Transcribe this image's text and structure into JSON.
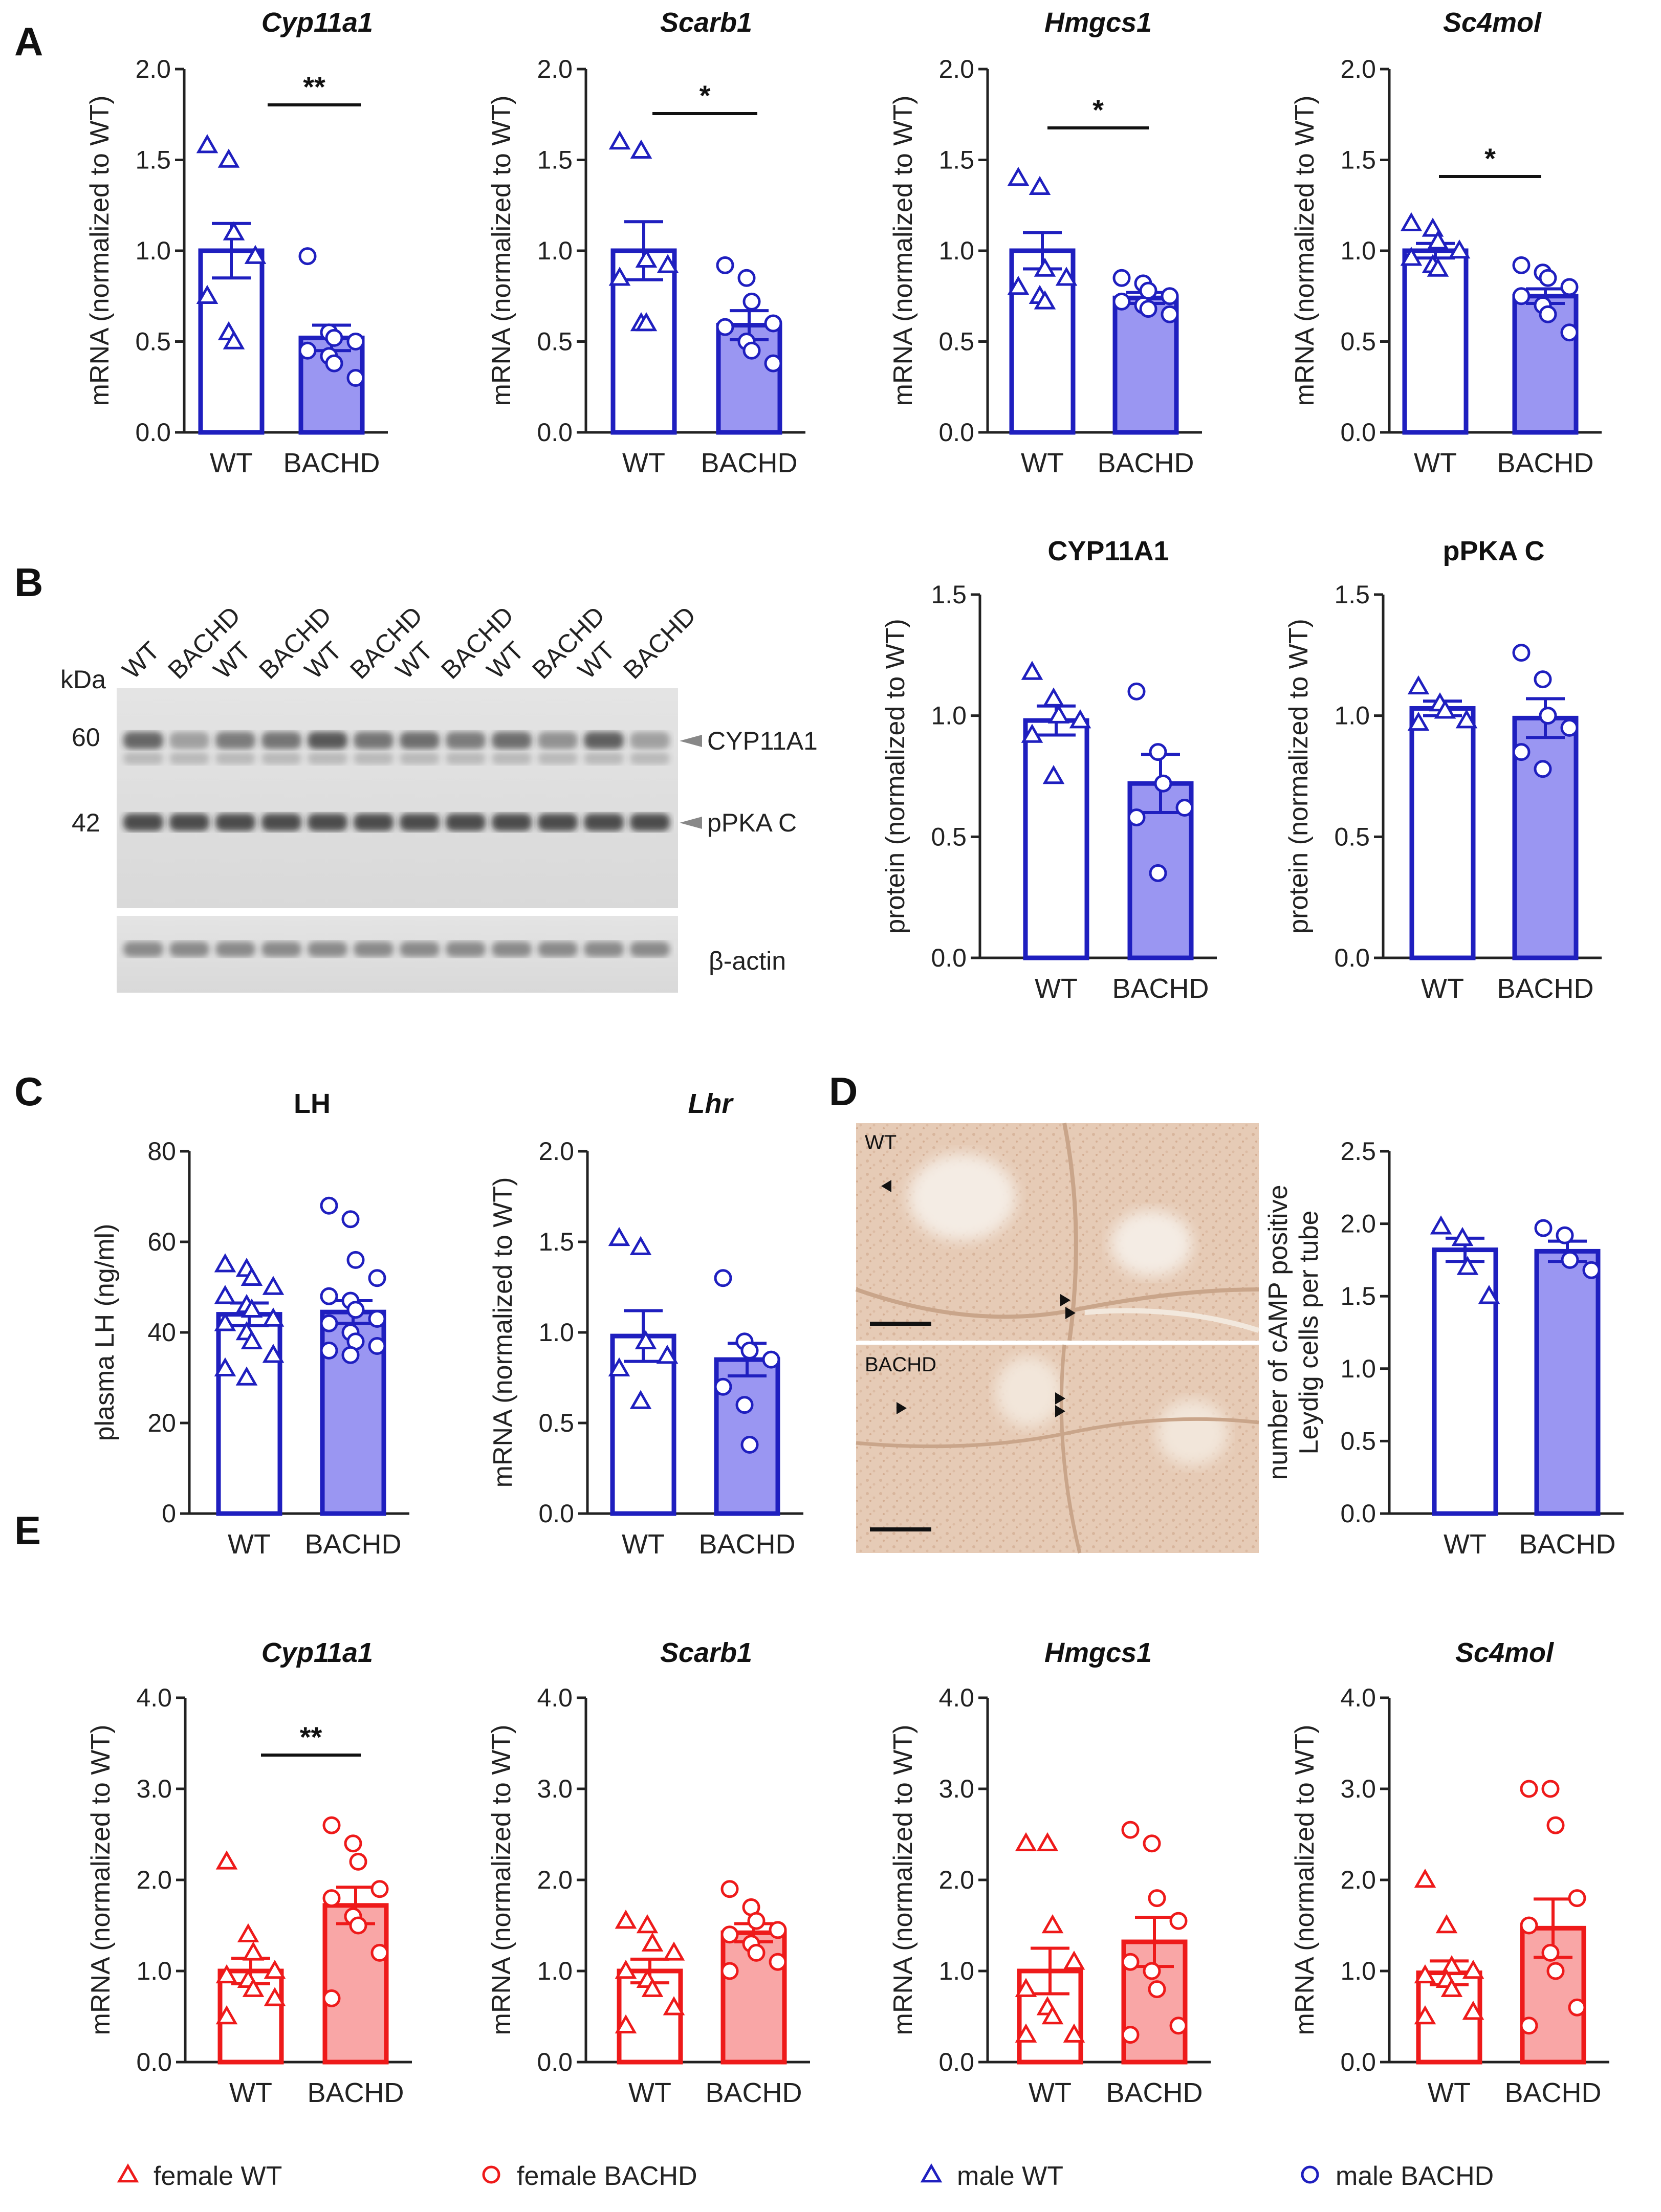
{
  "colors": {
    "blue": "#1f1fbf",
    "blue_fill": "#9a96f2",
    "red": "#ee1a1a",
    "red_fill": "#f9a6a6",
    "axis": "#222222",
    "open_fill": "#ffffff"
  },
  "panels": {
    "A": {
      "letter": "A"
    },
    "B": {
      "letter": "B"
    },
    "C": {
      "letter": "C"
    },
    "D": {
      "letter": "D"
    },
    "E": {
      "letter": "E"
    }
  },
  "blot": {
    "lanes": [
      "WT",
      "BACHD",
      "WT",
      "BACHD",
      "WT",
      "BACHD",
      "WT",
      "BACHD",
      "WT",
      "BACHD",
      "WT",
      "BACHD"
    ],
    "kda_label": "kDa",
    "markers": [
      "60",
      "42"
    ],
    "band_labels": [
      "CYP11A1",
      "pPKA C"
    ],
    "loading_label": "β-actin"
  },
  "micrograph": {
    "top_label": "WT",
    "bottom_label": "BACHD"
  },
  "legend": [
    {
      "label": "female WT",
      "shape": "triangle",
      "color": "red"
    },
    {
      "label": "female BACHD",
      "shape": "circle",
      "color": "red"
    },
    {
      "label": "male WT",
      "shape": "triangle",
      "color": "blue"
    },
    {
      "label": "male BACHD",
      "shape": "circle",
      "color": "blue"
    }
  ],
  "chart_data": [
    {
      "id": "A1",
      "type": "bar",
      "title": "Cyp11a1",
      "italic": true,
      "ylabel": "mRNA (normalized to WT)",
      "ylim": [
        0,
        2.0
      ],
      "yticks": [
        "0.0",
        "0.5",
        "1.0",
        "1.5",
        "2.0"
      ],
      "categories": [
        "WT",
        "BACHD"
      ],
      "values": [
        1.0,
        0.52
      ],
      "errors": [
        0.15,
        0.07
      ],
      "color": "blue",
      "points": [
        [
          1.58,
          1.5,
          1.1,
          0.97,
          0.75,
          0.55,
          0.5
        ],
        [
          0.97,
          0.55,
          0.52,
          0.5,
          0.45,
          0.42,
          0.38,
          0.3
        ]
      ],
      "significance": "**"
    },
    {
      "id": "A2",
      "type": "bar",
      "title": "Scarb1",
      "italic": true,
      "ylabel": "mRNA (normalized to WT)",
      "ylim": [
        0,
        2.0
      ],
      "yticks": [
        "0.0",
        "0.5",
        "1.0",
        "1.5",
        "2.0"
      ],
      "categories": [
        "WT",
        "BACHD"
      ],
      "values": [
        1.0,
        0.59
      ],
      "errors": [
        0.16,
        0.08
      ],
      "color": "blue",
      "points": [
        [
          1.6,
          1.55,
          0.95,
          0.92,
          0.85,
          0.6,
          0.6
        ],
        [
          0.92,
          0.85,
          0.72,
          0.6,
          0.58,
          0.5,
          0.45,
          0.38
        ]
      ],
      "significance": "*"
    },
    {
      "id": "A3",
      "type": "bar",
      "title": "Hmgcs1",
      "italic": true,
      "ylabel": "mRNA (normalized to WT)",
      "ylim": [
        0,
        2.0
      ],
      "yticks": [
        "0.0",
        "0.5",
        "1.0",
        "1.5",
        "2.0"
      ],
      "categories": [
        "WT",
        "BACHD"
      ],
      "values": [
        1.0,
        0.74
      ],
      "errors": [
        0.1,
        0.03
      ],
      "color": "blue",
      "points": [
        [
          1.4,
          1.35,
          0.9,
          0.85,
          0.8,
          0.75,
          0.72
        ],
        [
          0.85,
          0.82,
          0.78,
          0.75,
          0.72,
          0.7,
          0.68,
          0.65
        ]
      ],
      "significance": "*"
    },
    {
      "id": "A4",
      "type": "bar",
      "title": "Sc4mol",
      "italic": true,
      "ylabel": "mRNA (normalized to WT)",
      "ylim": [
        0,
        2.0
      ],
      "yticks": [
        "0.0",
        "0.5",
        "1.0",
        "1.5",
        "2.0"
      ],
      "categories": [
        "WT",
        "BACHD"
      ],
      "values": [
        1.0,
        0.75
      ],
      "errors": [
        0.04,
        0.04
      ],
      "color": "blue",
      "points": [
        [
          1.15,
          1.12,
          1.05,
          1.0,
          0.96,
          0.92,
          0.9
        ],
        [
          0.92,
          0.88,
          0.85,
          0.8,
          0.75,
          0.7,
          0.65,
          0.55
        ]
      ],
      "significance": "*"
    },
    {
      "id": "B1",
      "type": "bar",
      "title": "CYP11A1",
      "italic": false,
      "ylabel": "protein (normalized to WT)",
      "ylim": [
        0,
        1.5
      ],
      "yticks": [
        "0.0",
        "0.5",
        "1.0",
        "1.5"
      ],
      "categories": [
        "WT",
        "BACHD"
      ],
      "values": [
        0.98,
        0.72
      ],
      "errors": [
        0.06,
        0.12
      ],
      "color": "blue",
      "points": [
        [
          1.18,
          1.07,
          1.0,
          0.98,
          0.92,
          0.75
        ],
        [
          1.1,
          0.85,
          0.72,
          0.62,
          0.58,
          0.35
        ]
      ],
      "significance": ""
    },
    {
      "id": "B2",
      "type": "bar",
      "title": "pPKA C",
      "italic": false,
      "ylabel": "protein (normalized to WT)",
      "ylim": [
        0,
        1.5
      ],
      "yticks": [
        "0.0",
        "0.5",
        "1.0",
        "1.5"
      ],
      "categories": [
        "WT",
        "BACHD"
      ],
      "values": [
        1.03,
        0.99
      ],
      "errors": [
        0.03,
        0.08
      ],
      "color": "blue",
      "points": [
        [
          1.12,
          1.05,
          1.02,
          0.98,
          0.97
        ],
        [
          1.26,
          1.15,
          1.0,
          0.95,
          0.85,
          0.78
        ]
      ],
      "significance": ""
    },
    {
      "id": "C1",
      "type": "bar",
      "title": "LH",
      "italic": false,
      "ylabel": "plasma LH (ng/ml)",
      "ylim": [
        0,
        80
      ],
      "yticks": [
        "0",
        "20",
        "40",
        "60",
        "80"
      ],
      "categories": [
        "WT",
        "BACHD"
      ],
      "values": [
        44,
        44.5
      ],
      "errors": [
        2.5,
        2.5
      ],
      "color": "blue",
      "points": [
        [
          55,
          54,
          52,
          50,
          48,
          46,
          45,
          43,
          42,
          40,
          38,
          35,
          32,
          30
        ],
        [
          68,
          65,
          56,
          52,
          48,
          47,
          45,
          43,
          42,
          40,
          38,
          37,
          36,
          35
        ]
      ],
      "significance": ""
    },
    {
      "id": "C2",
      "type": "bar",
      "title": "Lhr",
      "italic": true,
      "ylabel": "mRNA (normalized to WT)",
      "ylim": [
        0,
        2.0
      ],
      "yticks": [
        "0.0",
        "0.5",
        "1.0",
        "1.5",
        "2.0"
      ],
      "categories": [
        "WT",
        "BACHD"
      ],
      "values": [
        0.98,
        0.85
      ],
      "errors": [
        0.14,
        0.09
      ],
      "color": "blue",
      "points": [
        [
          1.52,
          1.47,
          0.95,
          0.87,
          0.8,
          0.62
        ],
        [
          1.3,
          0.95,
          0.9,
          0.85,
          0.7,
          0.6,
          0.38
        ]
      ],
      "significance": ""
    },
    {
      "id": "D1",
      "type": "bar",
      "title": "",
      "italic": false,
      "ylabel": "number of cAMP positive|Leydig cells per tube",
      "ylim": [
        0,
        2.5
      ],
      "yticks": [
        "0.0",
        "0.5",
        "1.0",
        "1.5",
        "2.0",
        "2.5"
      ],
      "categories": [
        "WT",
        "BACHD"
      ],
      "values": [
        1.82,
        1.81
      ],
      "errors": [
        0.08,
        0.07
      ],
      "color": "blue",
      "points": [
        [
          1.98,
          1.9,
          1.7,
          1.5
        ],
        [
          1.97,
          1.92,
          1.75,
          1.68
        ]
      ],
      "significance": ""
    },
    {
      "id": "E1",
      "type": "bar",
      "title": "Cyp11a1",
      "italic": true,
      "ylabel": "mRNA (normalized to WT)",
      "ylim": [
        0,
        4.0
      ],
      "yticks": [
        "0.0",
        "1.0",
        "2.0",
        "3.0",
        "4.0"
      ],
      "categories": [
        "WT",
        "BACHD"
      ],
      "values": [
        1.0,
        1.72
      ],
      "errors": [
        0.14,
        0.2
      ],
      "color": "red",
      "points": [
        [
          2.2,
          1.4,
          1.2,
          1.0,
          0.95,
          0.9,
          0.8,
          0.7,
          0.5
        ],
        [
          2.6,
          2.4,
          2.2,
          1.9,
          1.8,
          1.6,
          1.5,
          1.2,
          0.7
        ]
      ],
      "significance": "**"
    },
    {
      "id": "E2",
      "type": "bar",
      "title": "Scarb1",
      "italic": true,
      "ylabel": "mRNA (normalized to WT)",
      "ylim": [
        0,
        4.0
      ],
      "yticks": [
        "0.0",
        "1.0",
        "2.0",
        "3.0",
        "4.0"
      ],
      "categories": [
        "WT",
        "BACHD"
      ],
      "values": [
        1.0,
        1.42
      ],
      "errors": [
        0.13,
        0.1
      ],
      "color": "red",
      "points": [
        [
          1.55,
          1.5,
          1.3,
          1.2,
          1.0,
          0.9,
          0.8,
          0.6,
          0.4
        ],
        [
          1.9,
          1.7,
          1.55,
          1.45,
          1.4,
          1.3,
          1.2,
          1.1,
          1.0
        ]
      ],
      "significance": ""
    },
    {
      "id": "E3",
      "type": "bar",
      "title": "Hmgcs1",
      "italic": true,
      "ylabel": "mRNA (normalized to WT)",
      "ylim": [
        0,
        4.0
      ],
      "yticks": [
        "0.0",
        "1.0",
        "2.0",
        "3.0",
        "4.0"
      ],
      "categories": [
        "WT",
        "BACHD"
      ],
      "values": [
        1.0,
        1.32
      ],
      "errors": [
        0.25,
        0.27
      ],
      "color": "red",
      "points": [
        [
          2.4,
          2.4,
          1.5,
          1.1,
          0.8,
          0.6,
          0.5,
          0.3,
          0.3
        ],
        [
          2.55,
          2.4,
          1.8,
          1.55,
          1.1,
          1.0,
          0.8,
          0.4,
          0.3
        ]
      ],
      "significance": ""
    },
    {
      "id": "E4",
      "type": "bar",
      "title": "Sc4mol",
      "italic": true,
      "ylabel": "mRNA (normalized to WT)",
      "ylim": [
        0,
        4.0
      ],
      "yticks": [
        "0.0",
        "1.0",
        "2.0",
        "3.0",
        "4.0"
      ],
      "categories": [
        "WT",
        "BACHD"
      ],
      "values": [
        0.98,
        1.47
      ],
      "errors": [
        0.13,
        0.32
      ],
      "color": "red",
      "points": [
        [
          2.0,
          1.5,
          1.05,
          1.0,
          0.95,
          0.9,
          0.8,
          0.55,
          0.5
        ],
        [
          3.0,
          3.0,
          2.6,
          1.8,
          1.5,
          1.2,
          1.0,
          0.6,
          0.4
        ]
      ],
      "significance": ""
    }
  ]
}
